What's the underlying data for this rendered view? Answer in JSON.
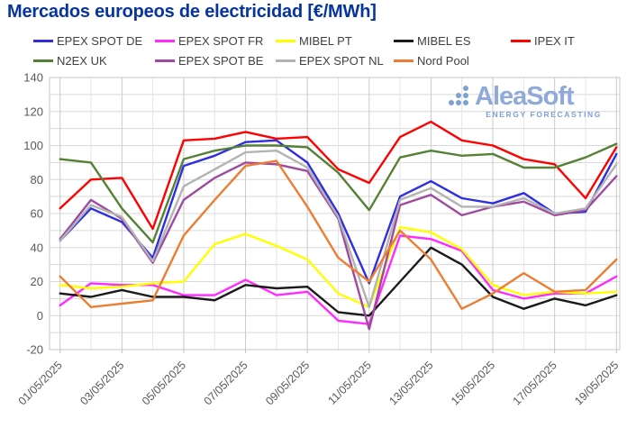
{
  "title": "Mercados europeos de electricidad [€/MWh]",
  "logo": {
    "name": "AleaSoft",
    "tagline": "ENERGY FORECASTING",
    "color": "#8fa9d9"
  },
  "axis": {
    "y_ticks": [
      140,
      120,
      100,
      80,
      60,
      40,
      20,
      0,
      -20
    ],
    "x_tick_labels_shown": [
      "01/05/2025",
      "03/05/2025",
      "05/05/2025",
      "07/05/2025",
      "09/05/2025",
      "11/05/2025",
      "13/05/2025",
      "15/05/2025",
      "17/05/2025",
      "19/05/2025"
    ],
    "tick_color": "#595959"
  },
  "chart_data": {
    "type": "line",
    "title": "Mercados europeos de electricidad [€/MWh]",
    "xlabel": "",
    "ylabel": "",
    "ylim": [
      -20,
      140
    ],
    "y_tick_step": 20,
    "grid": true,
    "legend_position": "top",
    "x": [
      "01/05/2025",
      "02/05/2025",
      "03/05/2025",
      "04/05/2025",
      "05/05/2025",
      "06/05/2025",
      "07/05/2025",
      "08/05/2025",
      "09/05/2025",
      "10/05/2025",
      "11/05/2025",
      "12/05/2025",
      "13/05/2025",
      "14/05/2025",
      "15/05/2025",
      "16/05/2025",
      "17/05/2025",
      "18/05/2025",
      "19/05/2025"
    ],
    "x_labeled_every": 2,
    "series": [
      {
        "name": "EPEX SPOT DE",
        "color": "#2e2ee0",
        "values": [
          44,
          63,
          55,
          34,
          88,
          94,
          102,
          103,
          90,
          60,
          19,
          70,
          79,
          69,
          66,
          72,
          60,
          61,
          95
        ]
      },
      {
        "name": "EPEX SPOT FR",
        "color": "#ff2bff",
        "values": [
          6,
          19,
          18,
          18,
          12,
          12,
          21,
          12,
          14,
          -3,
          -5,
          47,
          45,
          38,
          15,
          10,
          13,
          13,
          23
        ]
      },
      {
        "name": "MIBEL PT",
        "color": "#ffff00",
        "values": [
          18,
          16,
          17,
          19,
          20,
          42,
          48,
          41,
          33,
          13,
          5,
          52,
          49,
          39,
          18,
          12,
          14,
          13,
          14
        ]
      },
      {
        "name": "MIBEL ES",
        "color": "#1a1a1a",
        "values": [
          13,
          11,
          15,
          11,
          11,
          9,
          18,
          16,
          17,
          2,
          0,
          20,
          40,
          30,
          11,
          4,
          10,
          6,
          12
        ]
      },
      {
        "name": "IPEX IT",
        "color": "#ff0000",
        "values": [
          63,
          80,
          81,
          51,
          103,
          104,
          108,
          104,
          105,
          86,
          78,
          105,
          114,
          103,
          100,
          92,
          89,
          69,
          99
        ]
      },
      {
        "name": "N2EX UK",
        "color": "#538135",
        "values": [
          92,
          90,
          63,
          43,
          92,
          97,
          100,
          100,
          99,
          84,
          62,
          93,
          97,
          94,
          95,
          87,
          87,
          93,
          101
        ]
      },
      {
        "name": "EPEX SPOT BE",
        "color": "#9f4a9f",
        "values": [
          45,
          68,
          57,
          31,
          68,
          81,
          90,
          89,
          85,
          57,
          -8,
          65,
          71,
          59,
          64,
          67,
          59,
          62,
          82
        ]
      },
      {
        "name": "EPEX SPOT NL",
        "color": "#b3b3b3",
        "values": [
          44,
          65,
          58,
          32,
          76,
          86,
          96,
          97,
          87,
          58,
          5,
          68,
          75,
          64,
          64,
          69,
          60,
          63,
          89
        ]
      },
      {
        "name": "Nord Pool",
        "color": "#ed7d31",
        "values": [
          23,
          5,
          7,
          9,
          47,
          68,
          88,
          91,
          64,
          34,
          20,
          50,
          33,
          4,
          13,
          25,
          14,
          15,
          33
        ]
      }
    ]
  }
}
